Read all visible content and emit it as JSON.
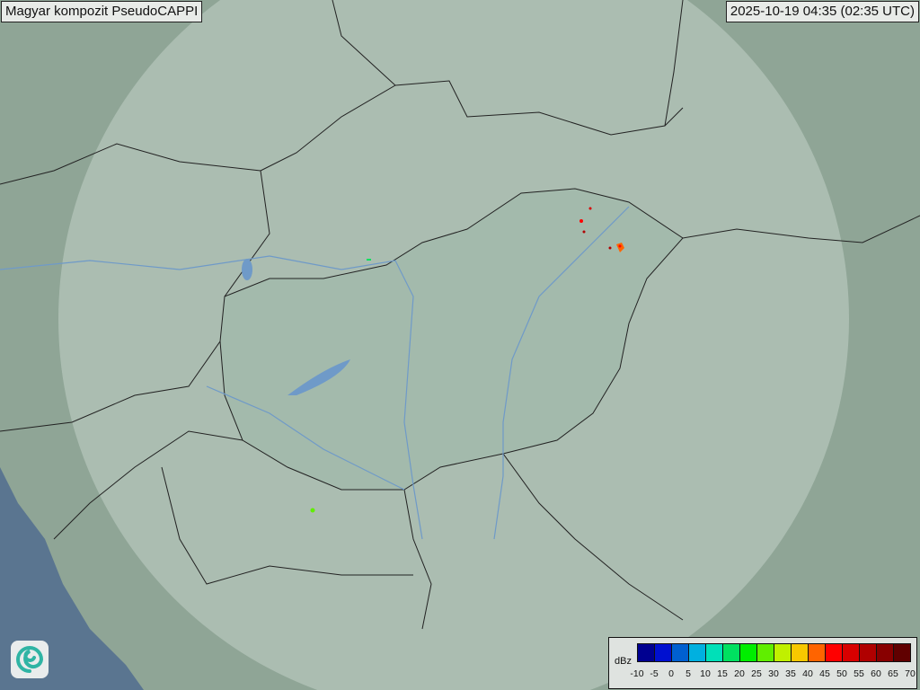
{
  "header": {
    "title": "Magyar kompozit  PseudoCAPPI",
    "timestamp": "2025-10-19 04:35 (02:35 UTC)"
  },
  "legend": {
    "unit": "dBz",
    "ticks": [
      "-10",
      "-5",
      "0",
      "5",
      "10",
      "15",
      "20",
      "25",
      "30",
      "35",
      "40",
      "45",
      "50",
      "55",
      "60",
      "65",
      "70"
    ],
    "colors": [
      "#000090",
      "#0010d0",
      "#0060d0",
      "#00b0e0",
      "#00e0b8",
      "#00e060",
      "#00ee00",
      "#60ee00",
      "#c0f000",
      "#f8c800",
      "#ff6400",
      "#ff0000",
      "#d80000",
      "#b00000",
      "#880000",
      "#600000"
    ]
  },
  "logo": {
    "icon": "swirl-logo-icon"
  },
  "map": {
    "colors": {
      "land": "#8fa596",
      "radar_coverage": "#b4c5bb",
      "sea": "#5a7590",
      "borders": "#222222",
      "rivers": "#6f9ac8"
    }
  }
}
